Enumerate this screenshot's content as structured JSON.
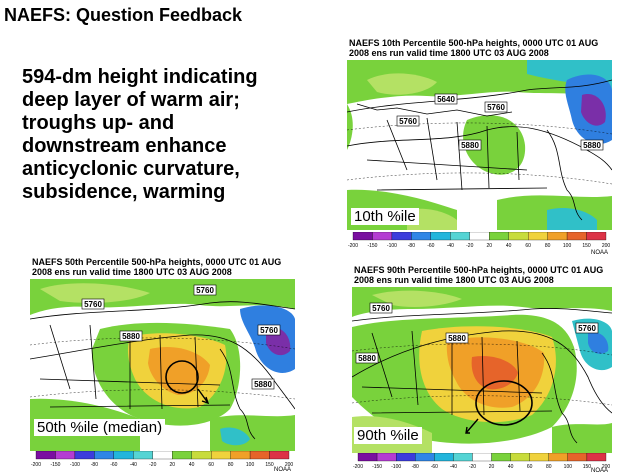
{
  "slide": {
    "title": "NAEFS: Question Feedback",
    "body_lines": [
      "594-dm height indicating",
      "deep layer of warm air;",
      "troughs up- and",
      "downstream enhance",
      "anticyclonic curvature,",
      "subsidence, warming"
    ]
  },
  "panels": {
    "p10": {
      "title_line1": "NAEFS 10th Percentile 500-hPa heights, 0000 UTC  01 AUG",
      "title_line2": "2008 ens run valid time 1800 UTC  03 AUG 2008",
      "caption": "10th %ile",
      "contours": [
        "5640",
        "5760",
        "5760",
        "5880"
      ],
      "noaa": "NOAA"
    },
    "p50": {
      "title_line1": "NAEFS 50th Percentile 500-hPa heights, 0000 UTC  01 AUG",
      "title_line2": "2008 ens run valid time 1800 UTC  03 AUG 2008",
      "caption": "50th %ile (median)",
      "contours": [
        "5760",
        "5760",
        "5760",
        "5880",
        "5880"
      ],
      "noaa": "NOAA"
    },
    "p90": {
      "title_line1": "NAEFS 90th Percentile 500-hPa heights, 0000 UTC  01 AUG",
      "title_line2": "2008 ens run valid time 1800 UTC  03 AUG 2008",
      "caption": "90th %ile",
      "contours": [
        "5760",
        "5760",
        "5880",
        "5880"
      ],
      "noaa": "NOAA"
    }
  },
  "colorbar": {
    "labels": [
      "-200",
      "-150",
      "-100",
      "-80",
      "-60",
      "-40",
      "-20",
      "20",
      "40",
      "60",
      "80",
      "100",
      "150",
      "200"
    ],
    "colors": [
      "#7a0fa0",
      "#b43cd2",
      "#3c3cdc",
      "#2f86e6",
      "#22b5dc",
      "#55d4d4",
      "#ffffff",
      "#7ad23c",
      "#c8dc3c",
      "#f0d23c",
      "#f0a028",
      "#e6642a",
      "#dc3246"
    ]
  },
  "map_colors": {
    "land": "#ffffff",
    "green": "#79d23c",
    "lightgreen": "#b4e164",
    "yellow": "#f0d23c",
    "orange": "#f0a028",
    "teal": "#30c0c8",
    "blue": "#2f7fe0",
    "purple": "#7a2fa8"
  }
}
